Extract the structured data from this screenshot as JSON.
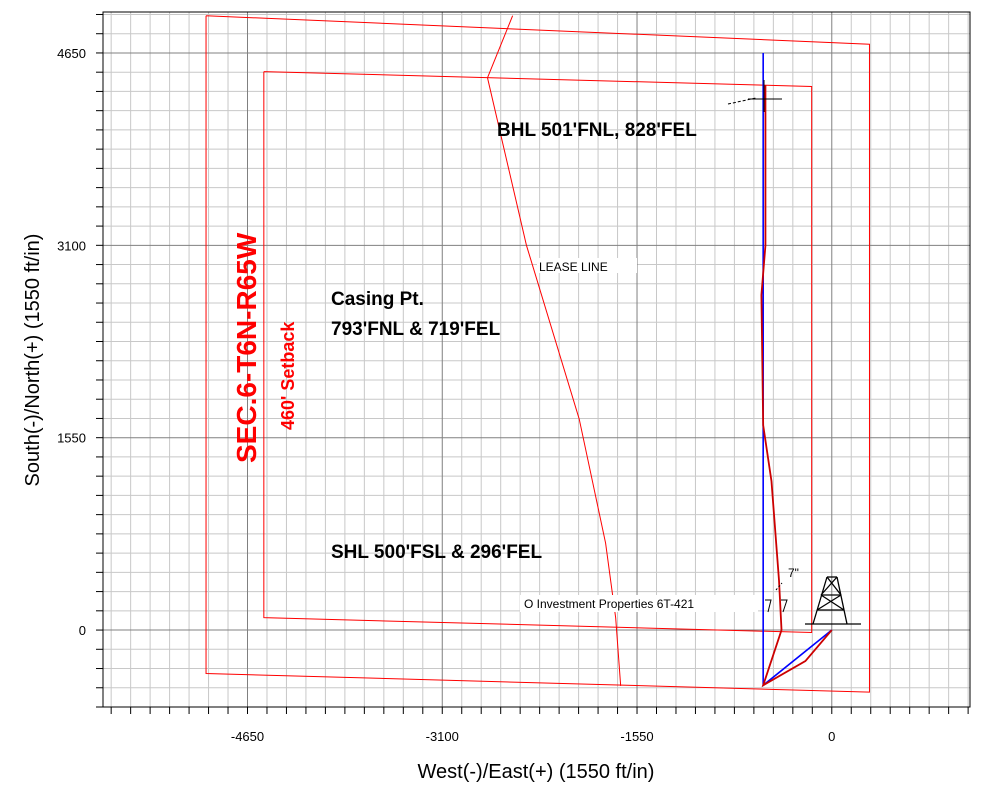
{
  "chart_data": {
    "type": "line",
    "title": "",
    "xlabel": "West(-)/East(+) (1550 ft/in)",
    "ylabel": "South(-)/North(+) (1550 ft/in)",
    "xlim": [
      -5800,
      1100
    ],
    "ylim": [
      -620,
      4980
    ],
    "x_ticks": [
      -4650,
      -3100,
      -1550,
      0
    ],
    "y_ticks": [
      0,
      1550,
      3100,
      4650
    ],
    "x_tick_labels": [
      "-4650",
      "-3100",
      "-1550",
      "0"
    ],
    "y_tick_labels": [
      "0",
      "1550",
      "3100",
      "4650"
    ],
    "grid": true,
    "grid_minor_step": 155,
    "series": [
      {
        "role": "plan",
        "color": "#0000ff",
        "x": [
          0,
          -546,
          -546,
          -546,
          -546,
          -546,
          -546
        ],
        "y": [
          0,
          -445,
          0,
          1550,
          3100,
          4650,
          4390
        ]
      },
      {
        "role": "actual",
        "color": "#cc0000",
        "x": [
          0,
          -210,
          -546,
          -400,
          -420,
          -480,
          -546,
          -560,
          -528,
          -528
        ],
        "y": [
          0,
          -250,
          -445,
          0,
          400,
          1200,
          1650,
          2700,
          3100,
          4390
        ]
      }
    ],
    "section_boundary": {
      "color": "#ff0000",
      "x": [
        -4980,
        300,
        300,
        -4980,
        -4980
      ],
      "y": [
        4950,
        4720,
        -500,
        -350,
        4950
      ]
    },
    "setback": {
      "color": "#ff0000",
      "x": [
        -4520,
        -160,
        -160,
        -4520,
        -4520
      ],
      "y": [
        4500,
        4380,
        -20,
        100,
        4500
      ]
    },
    "lease_line": {
      "color": "#ff0000",
      "x": [
        -2540,
        -2740,
        -2430,
        -2010,
        -1800,
        -1720,
        -1680
      ],
      "y": [
        4950,
        4450,
        3100,
        1700,
        700,
        100,
        -450
      ]
    },
    "annotations": {
      "bhl": "BHL 501'FNL, 828'FEL",
      "casing_line1": "Casing Pt.",
      "casing_line2": "793'FNL & 719'FEL",
      "shl": "SHL 500'FSL & 296'FEL",
      "section": "SEC.6-T6N-R65W",
      "setback": "460' Setback",
      "lease_line": "LEASE LINE",
      "rig_label": "O Investment Properties 6T-421",
      "casing_size": "7\""
    }
  }
}
